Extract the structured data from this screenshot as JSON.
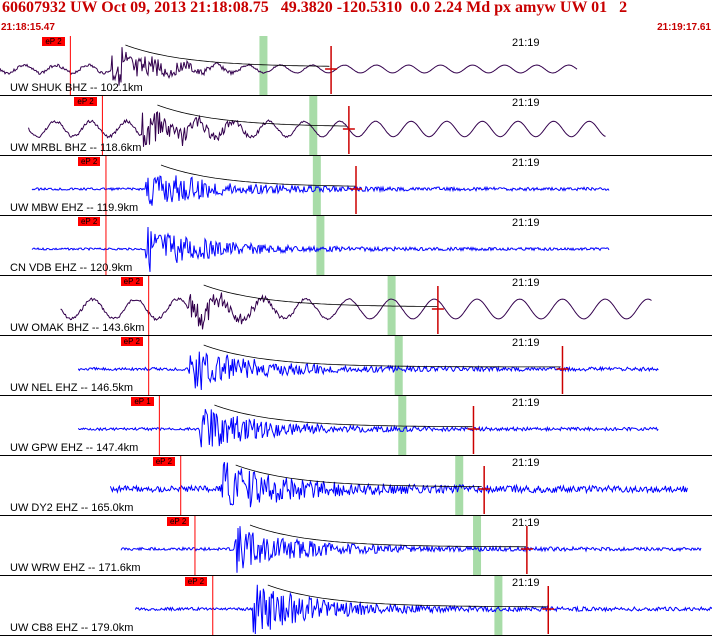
{
  "header": {
    "title": "60607932 UW Oct 09, 2013 21:18:08.75   49.3820 -120.5310  0.0 2.24 Md px amyw UW 01   2",
    "start_time": "21:18:15.47",
    "end_time": "21:19:17.61"
  },
  "minute_label": "21:19",
  "colors": {
    "header_text": "#c80000",
    "short_period": "#0000ff",
    "broadband": "#33004d",
    "pick_flag": "#ff0000",
    "coda_marker": "#cc0000",
    "coda_window": "#a8dca8"
  },
  "traces": [
    {
      "label": "UW SHUK BHZ -- 102.1km",
      "pick": "eP 2",
      "kind": "bb",
      "start": 0,
      "end": 0.81,
      "onset": 0.155,
      "amp": 1.0,
      "noise": 0.18,
      "period": 0.045,
      "coda": 0.465,
      "decay_curve": true,
      "window": 0.37
    },
    {
      "label": "UW MRBL BHZ -- 118.6km",
      "pick": "eP 2",
      "kind": "bb",
      "start": 0.04,
      "end": 0.85,
      "onset": 0.2,
      "amp": 0.95,
      "noise": 0.35,
      "period": 0.05,
      "coda": 0.49,
      "decay_curve": true,
      "window": 0.44
    },
    {
      "label": "UW MBW EHZ -- 119.9km",
      "pick": "eP 2",
      "kind": "sp",
      "start": 0.045,
      "end": 0.855,
      "onset": 0.205,
      "amp": 0.8,
      "noise": 0.05,
      "period": 0,
      "coda": 0.5,
      "decay_curve": true,
      "window": 0.445
    },
    {
      "label": "CN VDB EHZ -- 120.9km",
      "pick": "eP 2",
      "kind": "sp",
      "start": 0.045,
      "end": 0.855,
      "onset": 0.205,
      "amp": 0.85,
      "noise": 0.04,
      "period": 0,
      "coda": 0,
      "decay_curve": false,
      "window": 0.45
    },
    {
      "label": "UW OMAK BHZ -- 143.6km",
      "pick": "eP 2",
      "kind": "bb",
      "start": 0.085,
      "end": 0.915,
      "onset": 0.265,
      "amp": 0.7,
      "noise": 0.45,
      "period": 0.06,
      "coda": 0.615,
      "decay_curve": true,
      "window": 0.55
    },
    {
      "label": "UW NEL EHZ -- 146.5km",
      "pick": "eP 2",
      "kind": "sp",
      "start": 0.11,
      "end": 0.925,
      "onset": 0.265,
      "amp": 0.9,
      "noise": 0.06,
      "period": 0,
      "coda": 0.79,
      "decay_curve": true,
      "window": 0.56
    },
    {
      "label": "UW GPW EHZ -- 147.4km",
      "pick": "eP 1",
      "kind": "sp",
      "start": 0.11,
      "end": 0.925,
      "onset": 0.28,
      "amp": 0.8,
      "noise": 0.05,
      "period": 0,
      "coda": 0.665,
      "decay_curve": true,
      "window": 0.565
    },
    {
      "label": "UW DY2 EHZ -- 165.0km",
      "pick": "eP 2",
      "kind": "sp",
      "start": 0.155,
      "end": 0.965,
      "onset": 0.31,
      "amp": 0.95,
      "noise": 0.12,
      "period": 0,
      "coda": 0.68,
      "decay_curve": true,
      "window": 0.645
    },
    {
      "label": "UW WRW EHZ -- 171.6km",
      "pick": "eP 2",
      "kind": "sp",
      "start": 0.17,
      "end": 0.985,
      "onset": 0.33,
      "amp": 0.85,
      "noise": 0.06,
      "period": 0,
      "coda": 0.74,
      "decay_curve": true,
      "window": 0.67
    },
    {
      "label": "UW CB8 EHZ -- 179.0km",
      "pick": "eP 2",
      "kind": "sp",
      "start": 0.19,
      "end": 1.0,
      "onset": 0.355,
      "amp": 0.95,
      "noise": 0.06,
      "period": 0,
      "coda": 0.77,
      "decay_curve": true,
      "window": 0.7
    }
  ]
}
